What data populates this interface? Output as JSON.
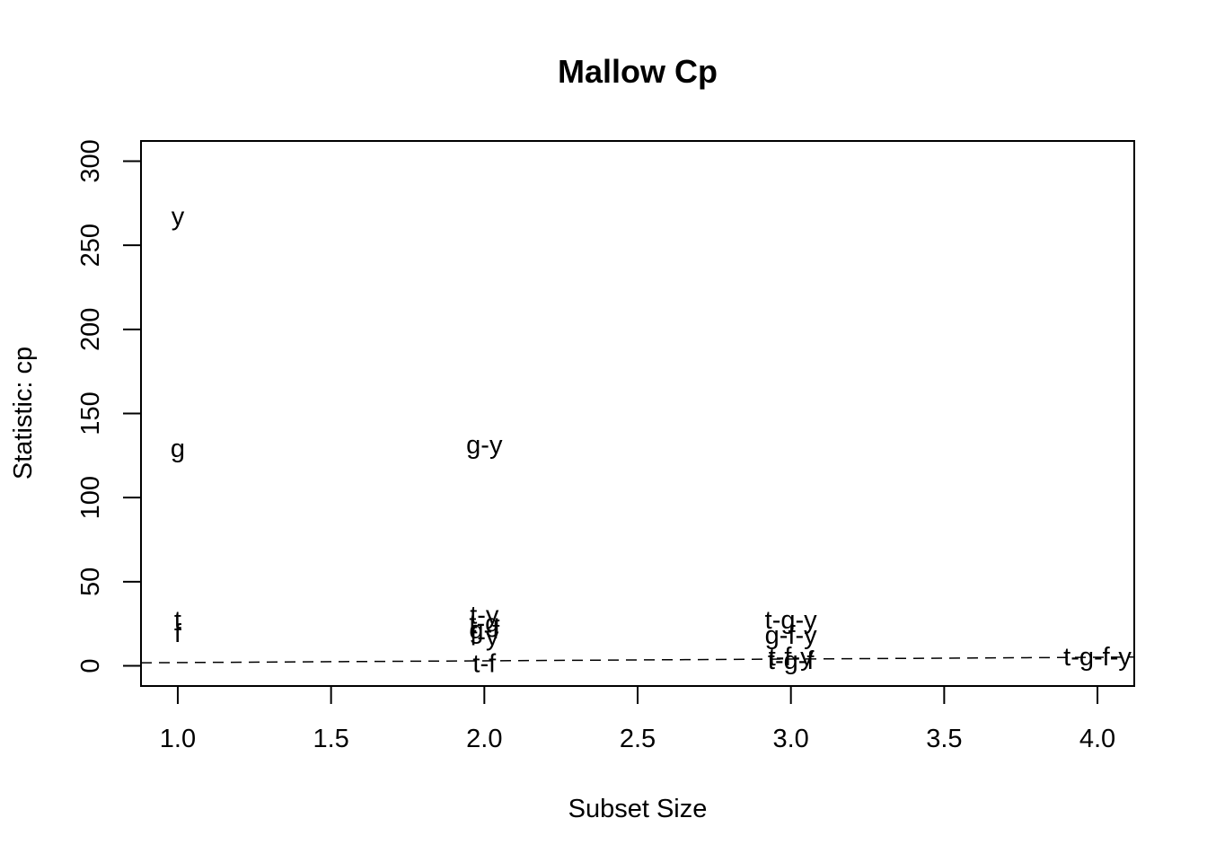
{
  "chart_data": {
    "type": "scatter",
    "title": "Mallow Cp",
    "xlabel": "Subset Size",
    "ylabel": "Statistic: cp",
    "xlim": [
      0.88,
      4.12
    ],
    "ylim": [
      -12,
      312
    ],
    "x_ticks": [
      "1.0",
      "1.5",
      "2.0",
      "2.5",
      "3.0",
      "3.5",
      "4.0"
    ],
    "x_tick_values": [
      1.0,
      1.5,
      2.0,
      2.5,
      3.0,
      3.5,
      4.0
    ],
    "y_ticks": [
      "0",
      "50",
      "100",
      "150",
      "200",
      "250",
      "300"
    ],
    "y_tick_values": [
      0,
      50,
      100,
      150,
      200,
      250,
      300
    ],
    "points": [
      {
        "x": 1,
        "y": 267,
        "label": "y"
      },
      {
        "x": 1,
        "y": 129,
        "label": "g"
      },
      {
        "x": 1,
        "y": 27,
        "label": "t"
      },
      {
        "x": 1,
        "y": 19,
        "label": "f"
      },
      {
        "x": 2,
        "y": 131,
        "label": "g-y"
      },
      {
        "x": 2,
        "y": 30,
        "label": "t-y"
      },
      {
        "x": 2,
        "y": 25,
        "label": "t-g"
      },
      {
        "x": 2,
        "y": 21,
        "label": "g-f"
      },
      {
        "x": 2,
        "y": 17,
        "label": "f-y"
      },
      {
        "x": 2,
        "y": 1,
        "label": "t-f"
      },
      {
        "x": 3,
        "y": 27,
        "label": "t-g-y"
      },
      {
        "x": 3,
        "y": 18,
        "label": "g-f-y"
      },
      {
        "x": 3,
        "y": 5,
        "label": "t-f-y"
      },
      {
        "x": 3,
        "y": 3,
        "label": "t-g-f"
      },
      {
        "x": 4,
        "y": 5,
        "label": "t-g-f-y"
      }
    ],
    "reference_line": {
      "style": "dashed",
      "x": [
        0.88,
        4.12
      ],
      "y": [
        1.8,
        5.2
      ]
    },
    "grid": false,
    "legend": "none"
  }
}
